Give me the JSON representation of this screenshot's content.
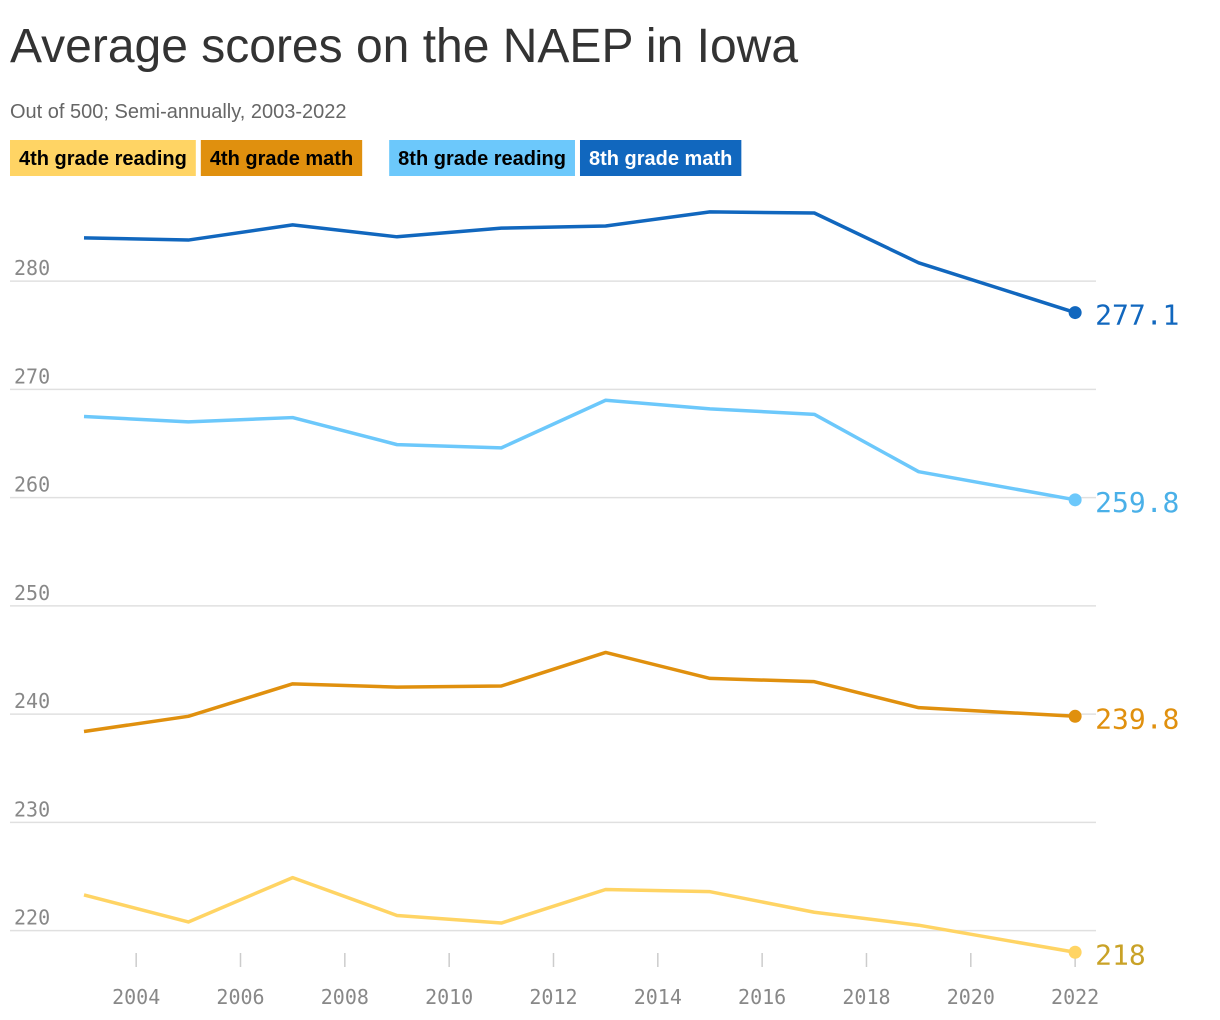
{
  "chart_data": {
    "type": "line",
    "title": "Average scores on the NAEP in Iowa",
    "subtitle": "Out of 500; Semi-annually, 2003-2022",
    "x": [
      2003,
      2005,
      2007,
      2009,
      2011,
      2013,
      2015,
      2017,
      2019,
      2022
    ],
    "series": [
      {
        "name": "4th grade reading",
        "color": "#ffd464",
        "label_color": "#c9a227",
        "text_color": "#000000",
        "values": [
          223.3,
          220.8,
          224.9,
          221.4,
          220.7,
          223.8,
          223.6,
          221.7,
          220.5,
          218
        ]
      },
      {
        "name": "4th grade math",
        "color": "#e0900e",
        "label_color": "#e0900e",
        "text_color": "#000000",
        "values": [
          238.4,
          239.8,
          242.8,
          242.5,
          242.6,
          245.7,
          243.3,
          243.0,
          240.6,
          239.8
        ]
      },
      {
        "name": "8th grade reading",
        "color": "#6cc8fb",
        "label_color": "#4ab0e8",
        "text_color": "#000000",
        "values": [
          267.5,
          267.0,
          267.4,
          264.9,
          264.6,
          269.0,
          268.2,
          267.7,
          262.4,
          259.8
        ]
      },
      {
        "name": "8th grade math",
        "color": "#1167be",
        "label_color": "#1167be",
        "text_color": "#ffffff",
        "values": [
          284.0,
          283.8,
          285.2,
          284.1,
          284.9,
          285.1,
          286.4,
          286.3,
          281.7,
          277.1
        ]
      }
    ],
    "xlim": [
      2003,
      2022.4
    ],
    "xticks": [
      2004,
      2006,
      2008,
      2010,
      2012,
      2014,
      2016,
      2018,
      2020,
      2022
    ],
    "ylim": [
      215.9,
      287.5
    ],
    "yticks": [
      220,
      230,
      240,
      250,
      260,
      270,
      280
    ],
    "grid": true
  }
}
